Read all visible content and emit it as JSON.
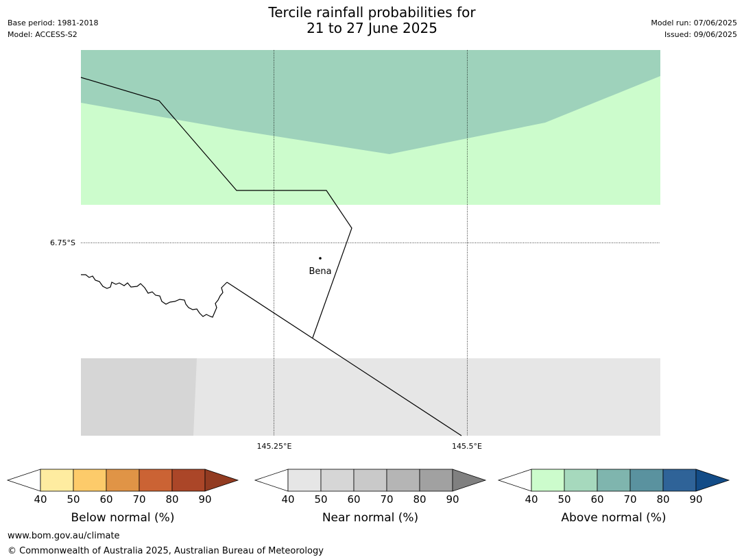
{
  "header": {
    "base_period": "Base period: 1981-2018",
    "model": "Model: ACCESS-S2",
    "title_line1": "Tercile rainfall probabilities for",
    "title_line2": "21 to 27 June 2025",
    "model_run": "Model run: 07/06/2025",
    "issued": "Issued: 09/06/2025"
  },
  "map": {
    "lat_label": "6.75°S",
    "lon_labels": [
      "145.25°E",
      "145.5°E"
    ],
    "place_name": "Bena",
    "colors": {
      "above_60_70": "#9ed2bb",
      "above_50_60": "#ccfccc",
      "near_50_60": "#d6d6d6",
      "near_40_50": "#e6e6e6",
      "no_signal": "#ffffff"
    }
  },
  "legends": [
    {
      "label": "Below normal (%)",
      "ticks": [
        "40",
        "50",
        "60",
        "70",
        "80",
        "90"
      ],
      "colors": [
        "#ffffff",
        "#feeca0",
        "#fdcb6a",
        "#e09446",
        "#cb6334",
        "#ab4628",
        "#923b21"
      ]
    },
    {
      "label": "Near normal (%)",
      "ticks": [
        "40",
        "50",
        "60",
        "70",
        "80",
        "90"
      ],
      "colors": [
        "#ffffff",
        "#e6e6e6",
        "#d6d6d6",
        "#c9c9c9",
        "#b5b5b5",
        "#a1a1a1",
        "#808080"
      ]
    },
    {
      "label": "Above normal (%)",
      "ticks": [
        "40",
        "50",
        "60",
        "70",
        "80",
        "90"
      ],
      "colors": [
        "#ffffff",
        "#ccfccc",
        "#a6d9bd",
        "#7fb5ae",
        "#5a929f",
        "#2f6398",
        "#134c87"
      ]
    }
  ],
  "footer": {
    "url": "www.bom.gov.au/climate",
    "copyright": "© Commonwealth of Australia 2025, Australian Bureau of Meteorology"
  }
}
